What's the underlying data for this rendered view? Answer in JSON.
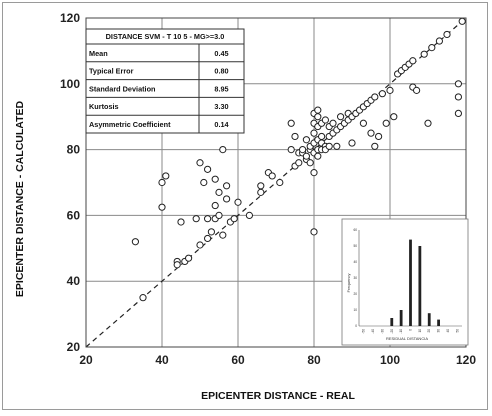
{
  "chart_data": {
    "type": "scatter",
    "title": "",
    "xlabel": "EPICENTER DISTANCE - REAL",
    "ylabel": "EPICENTER DISTANCE - CALCULATED",
    "xlim": [
      20,
      120
    ],
    "ylim": [
      20,
      120
    ],
    "xticks": [
      "20",
      "40",
      "60",
      "80",
      "100",
      "120"
    ],
    "yticks": [
      "20",
      "40",
      "60",
      "80",
      "100",
      "120"
    ],
    "grid": true,
    "reference_line": {
      "style": "dashed",
      "from": [
        20,
        20
      ],
      "to": [
        120,
        120
      ]
    },
    "marker": "open-circle",
    "points": [
      [
        33,
        52
      ],
      [
        35,
        35
      ],
      [
        40,
        70
      ],
      [
        40,
        62.5
      ],
      [
        41,
        72
      ],
      [
        44,
        46
      ],
      [
        44,
        45
      ],
      [
        45,
        58
      ],
      [
        46,
        46
      ],
      [
        47,
        47
      ],
      [
        49,
        59
      ],
      [
        50,
        51
      ],
      [
        50,
        76
      ],
      [
        51,
        70
      ],
      [
        52,
        53
      ],
      [
        52,
        59
      ],
      [
        52,
        74
      ],
      [
        53,
        55
      ],
      [
        54,
        59
      ],
      [
        54,
        63
      ],
      [
        54,
        71
      ],
      [
        55,
        60
      ],
      [
        55,
        67
      ],
      [
        56,
        80
      ],
      [
        56,
        54
      ],
      [
        57,
        65
      ],
      [
        57,
        69
      ],
      [
        58,
        58
      ],
      [
        59,
        59
      ],
      [
        60,
        64
      ],
      [
        63,
        60
      ],
      [
        66,
        67
      ],
      [
        66,
        69
      ],
      [
        68,
        73
      ],
      [
        69,
        72
      ],
      [
        71,
        70
      ],
      [
        74,
        80
      ],
      [
        74,
        88
      ],
      [
        75,
        75
      ],
      [
        75,
        84
      ],
      [
        76,
        76
      ],
      [
        76,
        79
      ],
      [
        77,
        79
      ],
      [
        77,
        80
      ],
      [
        78,
        77
      ],
      [
        78,
        78
      ],
      [
        78,
        83
      ],
      [
        79,
        80
      ],
      [
        79,
        81
      ],
      [
        79,
        76
      ],
      [
        80,
        79
      ],
      [
        80,
        82
      ],
      [
        80,
        85
      ],
      [
        80,
        88
      ],
      [
        80,
        91
      ],
      [
        80,
        55
      ],
      [
        80,
        73
      ],
      [
        81,
        80
      ],
      [
        81,
        83
      ],
      [
        81,
        87
      ],
      [
        81,
        90
      ],
      [
        81,
        92
      ],
      [
        81,
        78
      ],
      [
        82,
        80
      ],
      [
        82,
        82
      ],
      [
        82,
        84
      ],
      [
        82,
        88
      ],
      [
        83,
        81
      ],
      [
        83,
        80
      ],
      [
        83,
        89
      ],
      [
        84,
        84
      ],
      [
        84,
        87
      ],
      [
        84,
        81
      ],
      [
        85,
        85
      ],
      [
        85,
        88
      ],
      [
        86,
        86
      ],
      [
        86,
        81
      ],
      [
        87,
        87
      ],
      [
        87,
        90
      ],
      [
        88,
        88
      ],
      [
        89,
        89
      ],
      [
        89,
        91
      ],
      [
        90,
        90
      ],
      [
        90,
        82
      ],
      [
        91,
        91
      ],
      [
        92,
        92
      ],
      [
        93,
        93
      ],
      [
        93,
        88
      ],
      [
        94,
        94
      ],
      [
        95,
        95
      ],
      [
        95,
        85
      ],
      [
        96,
        96
      ],
      [
        96,
        81
      ],
      [
        97,
        84
      ],
      [
        98,
        97
      ],
      [
        99,
        88
      ],
      [
        100,
        98
      ],
      [
        101,
        90
      ],
      [
        102,
        103
      ],
      [
        103,
        104
      ],
      [
        104,
        105
      ],
      [
        105,
        106
      ],
      [
        106,
        107
      ],
      [
        106,
        99
      ],
      [
        107,
        98
      ],
      [
        109,
        109
      ],
      [
        110,
        88
      ],
      [
        111,
        111
      ],
      [
        113,
        113
      ],
      [
        115,
        115
      ],
      [
        118,
        100
      ],
      [
        118,
        96
      ],
      [
        118,
        91
      ],
      [
        119,
        119
      ]
    ],
    "stats_table": {
      "header": "DISTANCE SVM - T 10 5 - MG>=3.0",
      "rows": [
        {
          "label": "Mean",
          "value": "0.45"
        },
        {
          "label": "Typical Error",
          "value": "0.80"
        },
        {
          "label": "Standard Deviation",
          "value": "8.95"
        },
        {
          "label": "Kurtosis",
          "value": "3.30"
        },
        {
          "label": "Asymmetric Coefficient",
          "value": "0.14"
        }
      ]
    },
    "inset": {
      "type": "bar",
      "xlabel": "RESIDUAL DISTANCIA",
      "ylabel": "Frequency",
      "ylim": [
        0,
        60
      ],
      "yticks": [
        "0",
        "10",
        "20",
        "30",
        "40",
        "50",
        "60"
      ],
      "categories": [
        "-50",
        "-40",
        "-30",
        "-20",
        "-10",
        "0",
        "10",
        "20",
        "30",
        "40",
        "50"
      ],
      "values": [
        0,
        0,
        0,
        5,
        10,
        54,
        50,
        8,
        4,
        0,
        0
      ]
    }
  }
}
